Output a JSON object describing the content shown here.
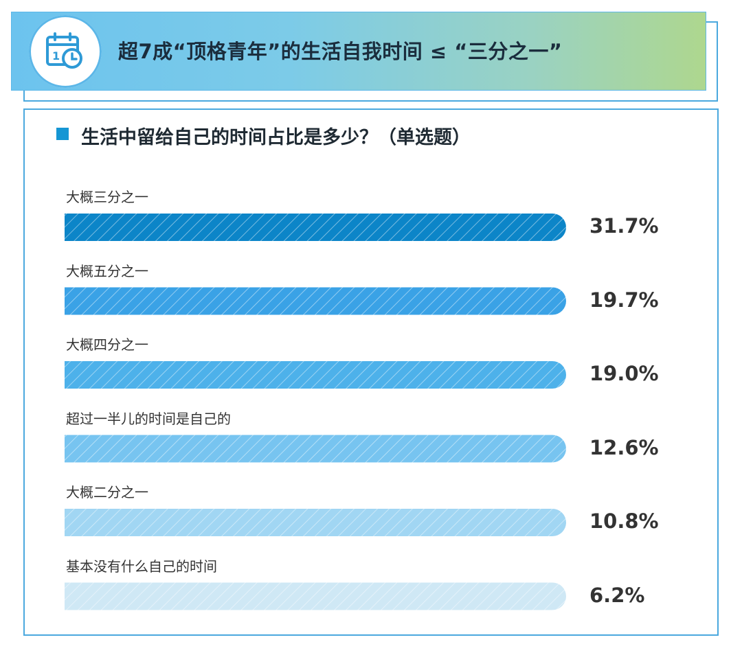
{
  "header": {
    "title": "超7成“顶格青年”的生活自我时间 ≤ “三分之一”",
    "icon": "calendar-clock-icon"
  },
  "question": {
    "title": "生活中留给自己的时间占比是多少？（单选题）"
  },
  "colors": {
    "bars": [
      "#0c85c8",
      "#3aa2e6",
      "#4db1ea",
      "#77c4f0",
      "#a1d6f3",
      "#cfe8f5"
    ],
    "accent": "#1596d4"
  },
  "chart_data": {
    "type": "bar",
    "orientation": "horizontal",
    "title": "生活中留给自己的时间占比是多少？（单选题）",
    "categories": [
      "大概三分之一",
      "大概五分之一",
      "大概四分之一",
      "超过一半儿的时间是自己的",
      "大概二分之一",
      "基本没有什么自己的时间"
    ],
    "values": [
      31.7,
      19.7,
      19.0,
      12.6,
      10.8,
      6.2
    ],
    "value_labels": [
      "31.7%",
      "19.7%",
      "19.0%",
      "12.6%",
      "10.8%",
      "6.2%"
    ],
    "xlabel": "",
    "ylabel": "",
    "grid": false,
    "legend": "none"
  }
}
